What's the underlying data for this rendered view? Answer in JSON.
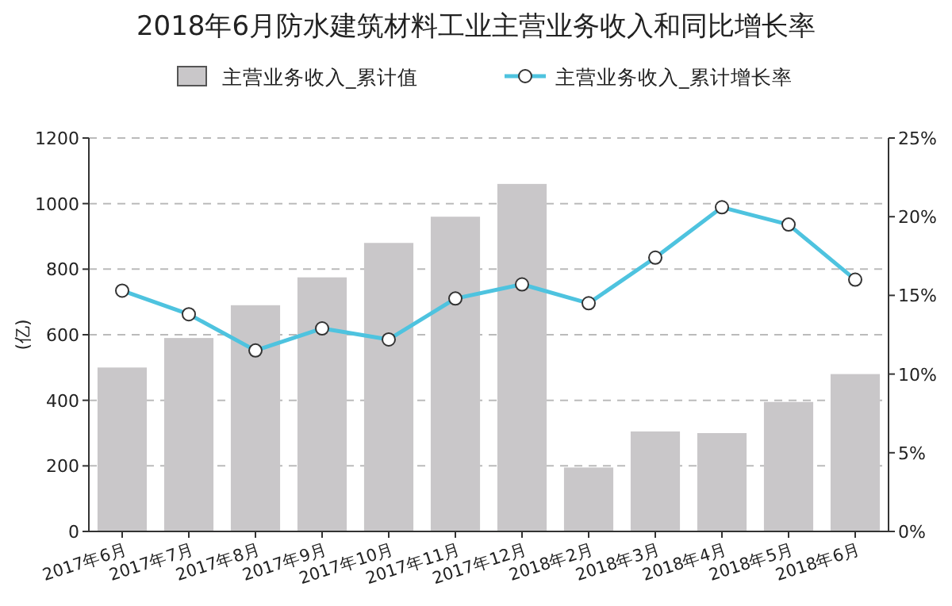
{
  "chart_data": {
    "type": "bar",
    "title": "2018年6月防水建筑材料工业主营业务收入和同比增长率",
    "ylabel": "(亿)",
    "categories": [
      "2017年6月",
      "2017年7月",
      "2017年8月",
      "2017年9月",
      "2017年10月",
      "2017年11月",
      "2017年12月",
      "2018年2月",
      "2018年3月",
      "2018年4月",
      "2018年5月",
      "2018年6月"
    ],
    "series": [
      {
        "name": "主营业务收入_累计值",
        "color": "#c9c7c9",
        "values": [
          500,
          590,
          690,
          775,
          880,
          960,
          1060,
          195,
          305,
          300,
          395,
          480
        ]
      },
      {
        "name": "主营业务收入_累计增长率",
        "type": "line",
        "axis": "y2",
        "color": "#4ec3df",
        "marker": "circle",
        "values": [
          15.3,
          13.8,
          11.5,
          12.9,
          12.2,
          14.8,
          15.7,
          14.5,
          17.4,
          20.6,
          19.5,
          16.0
        ]
      }
    ],
    "ylim": [
      0,
      1200
    ],
    "yticks": [
      0,
      200,
      400,
      600,
      800,
      1000,
      1200
    ],
    "y2lim": [
      0,
      25
    ],
    "y2ticks": [
      {
        "value": 0,
        "label": "0%"
      },
      {
        "value": 5,
        "label": "5%"
      },
      {
        "value": 10,
        "label": "10%"
      },
      {
        "value": 15,
        "label": "15%"
      },
      {
        "value": 20,
        "label": "20%"
      },
      {
        "value": 25,
        "label": "25%"
      }
    ],
    "grid": "y",
    "legend": "top"
  }
}
